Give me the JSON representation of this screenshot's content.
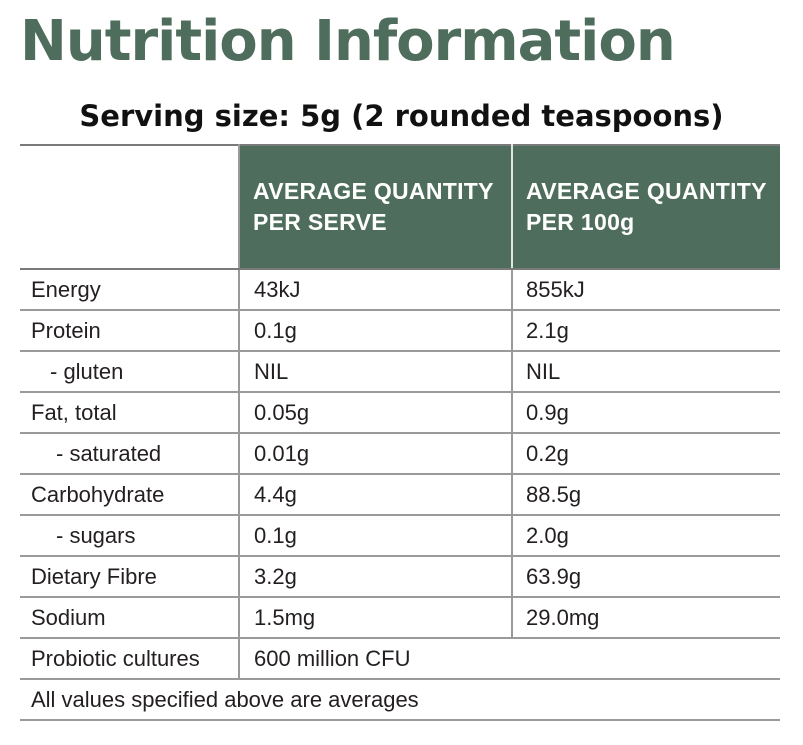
{
  "title": "Nutrition Information",
  "serving_size": "Serving size: 5g (2 rounded teaspoons)",
  "table": {
    "header": {
      "per_serve": [
        "AVERAGE QUANTITY",
        "PER SERVE"
      ],
      "per_100g": [
        "AVERAGE QUANTITY",
        "PER 100g"
      ]
    },
    "rows": [
      {
        "label": "Energy",
        "per_serve": "43kJ",
        "per_100g": "855kJ",
        "indent": 0
      },
      {
        "label": "Protein",
        "per_serve": "0.1g",
        "per_100g": "2.1g",
        "indent": 0
      },
      {
        "label": "- gluten",
        "per_serve": "NIL",
        "per_100g": "NIL",
        "indent": 1
      },
      {
        "label": "Fat, total",
        "per_serve": "0.05g",
        "per_100g": "0.9g",
        "indent": 0
      },
      {
        "label": "- saturated",
        "per_serve": "0.01g",
        "per_100g": "0.2g",
        "indent": 2
      },
      {
        "label": "Carbohydrate",
        "per_serve": "4.4g",
        "per_100g": "88.5g",
        "indent": 0
      },
      {
        "label": "- sugars",
        "per_serve": "0.1g",
        "per_100g": "2.0g",
        "indent": 2
      },
      {
        "label": "Dietary Fibre",
        "per_serve": "3.2g",
        "per_100g": "63.9g",
        "indent": 0
      },
      {
        "label": "Sodium",
        "per_serve": "1.5mg",
        "per_100g": "29.0mg",
        "indent": 0
      }
    ],
    "probiotic": {
      "label": "Probiotic cultures",
      "value": "600 million CFU"
    },
    "footnote": "All values specified above are averages"
  },
  "colors": {
    "accent": "#4f6d5c",
    "header_text": "#ffffff",
    "rule": "#9a9a9a"
  }
}
